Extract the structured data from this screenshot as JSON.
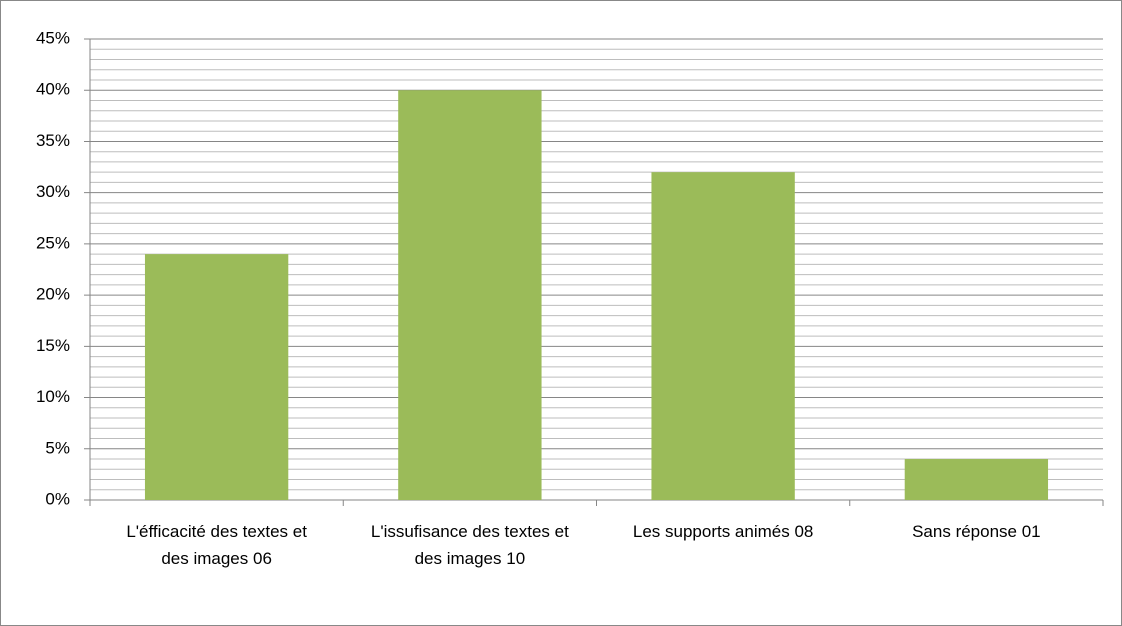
{
  "chart_data": {
    "type": "bar",
    "categories": [
      "L'éfficacité des textes et des images 06",
      "L'issufisance des textes et des images 10",
      "Les supports animés 08",
      "Sans réponse 01"
    ],
    "values": [
      24,
      40,
      32,
      4
    ],
    "color": "#9bbb59",
    "ylim": [
      0,
      45
    ],
    "yticks": [
      {
        "value": 0,
        "label": "0%"
      },
      {
        "value": 5,
        "label": "5%"
      },
      {
        "value": 10,
        "label": "10%"
      },
      {
        "value": 15,
        "label": "15%"
      },
      {
        "value": 20,
        "label": "20%"
      },
      {
        "value": 25,
        "label": "25%"
      },
      {
        "value": 30,
        "label": "30%"
      },
      {
        "value": 35,
        "label": "35%"
      },
      {
        "value": 40,
        "label": "40%"
      },
      {
        "value": 45,
        "label": "45%"
      }
    ],
    "minor_yticks": [
      1,
      2,
      3,
      4,
      6,
      7,
      8,
      9,
      11,
      12,
      13,
      14,
      16,
      17,
      18,
      19,
      21,
      22,
      23,
      24,
      26,
      27,
      28,
      29,
      31,
      32,
      33,
      34,
      36,
      37,
      38,
      39,
      41,
      42,
      43,
      44
    ],
    "grid": true
  }
}
